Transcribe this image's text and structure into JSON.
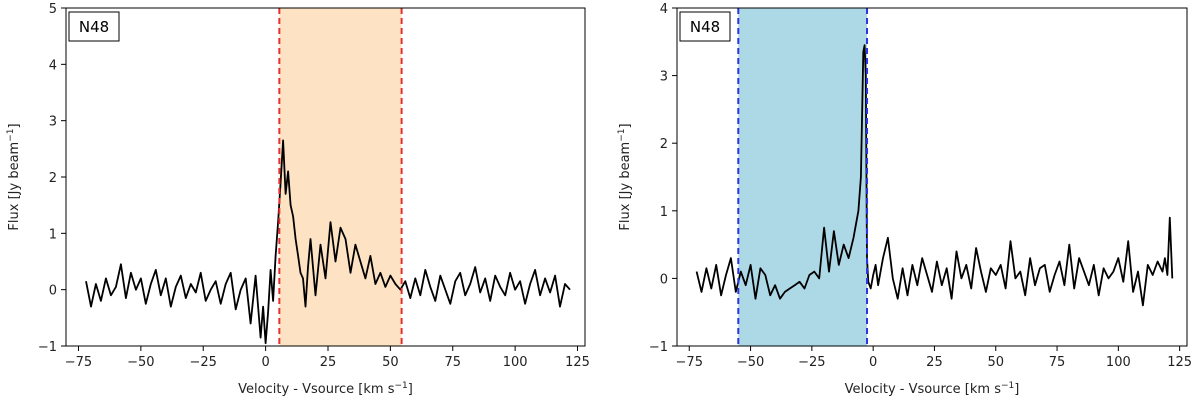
{
  "chart_data": [
    {
      "type": "line",
      "tag": "N48",
      "xlabel_text": "Velocity - Vsource [km s",
      "xlabel_sup": "−1",
      "xlabel_end": "]",
      "ylabel_text": "Flux [Jy beam",
      "ylabel_sup": "−1",
      "ylabel_end": "]",
      "xlim": [
        -80,
        128
      ],
      "ylim": [
        -1,
        5
      ],
      "xticks": [
        -75,
        -50,
        -25,
        0,
        25,
        50,
        75,
        100,
        125
      ],
      "xtick_labels": [
        "−75",
        "−50",
        "−25",
        "0",
        "25",
        "50",
        "75",
        "100",
        "125"
      ],
      "yticks": [
        -1,
        0,
        1,
        2,
        3,
        4,
        5
      ],
      "ytick_labels": [
        "−1",
        "0",
        "1",
        "2",
        "3",
        "4",
        "5"
      ],
      "band": [
        5.5,
        54.5
      ],
      "band_color": "#fde2c4",
      "line_color": "#e53030",
      "series": [
        {
          "color": "#000000",
          "x": [
            -72,
            -70,
            -68,
            -66,
            -64,
            -62,
            -60,
            -58,
            -56,
            -54,
            -52,
            -50,
            -48,
            -46,
            -44,
            -42,
            -40,
            -38,
            -36,
            -34,
            -32,
            -30,
            -28,
            -26,
            -24,
            -22,
            -20,
            -18,
            -16,
            -14,
            -12,
            -10,
            -8,
            -6,
            -4,
            -2,
            -1,
            0,
            1,
            2,
            3,
            4,
            5,
            6,
            7,
            8,
            9,
            10,
            11,
            12,
            13,
            14,
            15,
            16,
            17,
            18,
            20,
            22,
            24,
            26,
            28,
            30,
            32,
            34,
            36,
            38,
            40,
            42,
            44,
            46,
            48,
            50,
            52,
            54,
            56,
            58,
            60,
            62,
            64,
            66,
            68,
            70,
            72,
            74,
            76,
            78,
            80,
            82,
            84,
            86,
            88,
            90,
            92,
            94,
            96,
            98,
            100,
            102,
            104,
            106,
            108,
            110,
            112,
            114,
            116,
            118,
            120,
            122
          ],
          "y": [
            0.15,
            -0.3,
            0.1,
            -0.2,
            0.2,
            -0.1,
            0.05,
            0.45,
            -0.15,
            0.3,
            0.0,
            0.2,
            -0.25,
            0.1,
            0.35,
            -0.1,
            0.2,
            -0.3,
            0.05,
            0.25,
            -0.15,
            0.1,
            -0.05,
            0.3,
            -0.2,
            0.0,
            0.15,
            -0.25,
            0.1,
            0.3,
            -0.35,
            0.0,
            0.2,
            -0.6,
            0.25,
            -0.85,
            -0.3,
            -0.95,
            -0.4,
            0.35,
            -0.2,
            0.6,
            1.2,
            1.9,
            2.65,
            1.7,
            2.1,
            1.5,
            1.3,
            0.9,
            0.6,
            0.3,
            0.2,
            -0.3,
            0.4,
            0.9,
            -0.1,
            0.8,
            0.2,
            1.2,
            0.5,
            1.1,
            0.9,
            0.3,
            0.8,
            0.5,
            0.2,
            0.6,
            0.1,
            0.3,
            0.05,
            0.25,
            0.1,
            0.0,
            0.15,
            -0.15,
            0.2,
            -0.1,
            0.35,
            0.05,
            -0.2,
            0.25,
            0.0,
            -0.25,
            0.15,
            0.3,
            -0.1,
            0.1,
            0.4,
            -0.05,
            0.2,
            -0.2,
            0.25,
            0.05,
            -0.1,
            0.3,
            0.0,
            0.15,
            -0.25,
            0.1,
            0.35,
            -0.1,
            0.2,
            -0.05,
            0.25,
            -0.3,
            0.1,
            0.0
          ]
        }
      ]
    },
    {
      "type": "line",
      "tag": "N48",
      "xlabel_text": "Velocity - Vsource [km s",
      "xlabel_sup": "−1",
      "xlabel_end": "]",
      "ylabel_text": "Flux [Jy beam",
      "ylabel_sup": "−1",
      "ylabel_end": "]",
      "xlim": [
        -80,
        128
      ],
      "ylim": [
        -1,
        4
      ],
      "xticks": [
        -75,
        -50,
        -25,
        0,
        25,
        50,
        75,
        100,
        125
      ],
      "xtick_labels": [
        "−75",
        "−50",
        "−25",
        "0",
        "25",
        "50",
        "75",
        "100",
        "125"
      ],
      "yticks": [
        -1,
        0,
        1,
        2,
        3,
        4
      ],
      "ytick_labels": [
        "−1",
        "0",
        "1",
        "2",
        "3",
        "4"
      ],
      "band": [
        -55,
        -2.5
      ],
      "band_color": "#add8e6",
      "line_color": "#2b35e0",
      "series": [
        {
          "color": "#000000",
          "x": [
            -72,
            -70,
            -68,
            -66,
            -64,
            -62,
            -60,
            -58,
            -56,
            -54,
            -52,
            -50,
            -48,
            -46,
            -44,
            -42,
            -40,
            -38,
            -36,
            -34,
            -32,
            -30,
            -28,
            -26,
            -24,
            -22,
            -20,
            -18,
            -16,
            -14,
            -12,
            -10,
            -8,
            -6,
            -5,
            -4,
            -3.5,
            -3,
            -2.5,
            -2,
            -1,
            0,
            1,
            2,
            4,
            6,
            8,
            10,
            12,
            14,
            16,
            18,
            20,
            22,
            24,
            26,
            28,
            30,
            32,
            34,
            36,
            38,
            40,
            42,
            44,
            46,
            48,
            50,
            52,
            54,
            56,
            58,
            60,
            62,
            64,
            66,
            68,
            70,
            72,
            74,
            76,
            78,
            80,
            82,
            84,
            86,
            88,
            90,
            92,
            94,
            96,
            98,
            100,
            102,
            104,
            106,
            108,
            110,
            112,
            114,
            116,
            118,
            119,
            120,
            121,
            122
          ],
          "y": [
            0.1,
            -0.2,
            0.15,
            -0.15,
            0.2,
            -0.25,
            0.05,
            0.3,
            -0.2,
            0.1,
            -0.1,
            0.2,
            -0.3,
            0.15,
            0.05,
            -0.25,
            -0.1,
            -0.3,
            -0.2,
            -0.15,
            -0.1,
            -0.05,
            -0.15,
            0.05,
            0.1,
            0.0,
            0.75,
            0.1,
            0.7,
            0.2,
            0.5,
            0.3,
            0.6,
            1.0,
            1.5,
            3.35,
            3.45,
            3.0,
            0.3,
            -0.05,
            -0.15,
            0.05,
            0.2,
            -0.1,
            0.3,
            0.6,
            0.0,
            -0.3,
            0.15,
            -0.25,
            0.2,
            -0.1,
            0.3,
            0.05,
            -0.2,
            0.25,
            -0.1,
            0.15,
            -0.3,
            0.4,
            0.0,
            0.2,
            -0.15,
            0.45,
            0.1,
            -0.2,
            0.15,
            0.05,
            0.2,
            -0.15,
            0.55,
            0.0,
            0.1,
            -0.25,
            0.3,
            -0.1,
            0.15,
            0.2,
            -0.2,
            0.05,
            0.25,
            -0.1,
            0.5,
            -0.15,
            0.3,
            0.1,
            -0.1,
            0.2,
            -0.25,
            0.15,
            0.0,
            0.1,
            0.3,
            -0.05,
            0.55,
            -0.2,
            0.1,
            -0.4,
            0.2,
            0.05,
            0.25,
            0.1,
            0.3,
            0.05,
            0.9,
            0.0
          ]
        }
      ]
    }
  ]
}
